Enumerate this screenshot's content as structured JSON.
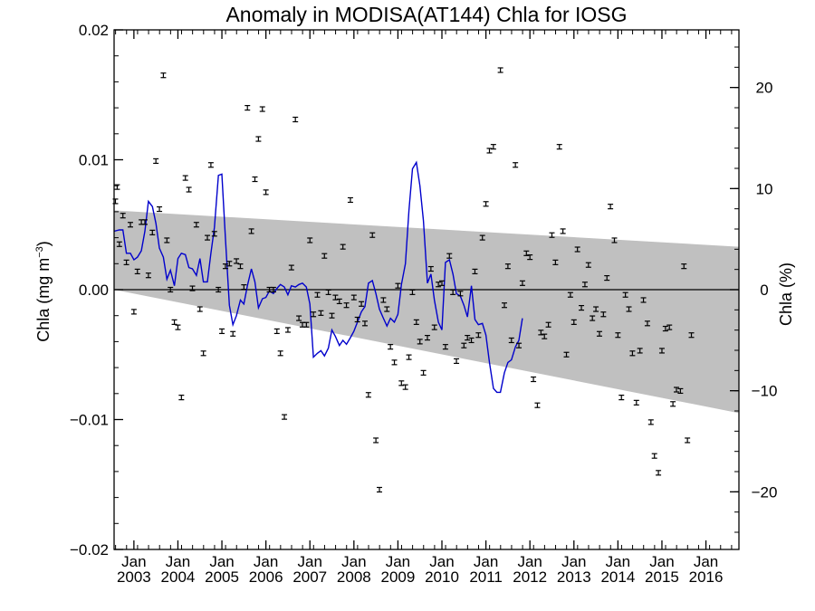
{
  "chart_data": {
    "type": "scatter",
    "title": "Anomaly in MODISA(AT144) Chla for IOSG",
    "ylabel": "Chla (mg m",
    "ylabel_sup": "−3",
    "ylabel_close": ")",
    "ylabel_right": "Chla (%)",
    "ylim": [
      -0.02,
      0.02
    ],
    "y2lim": [
      -25.7,
      25.7
    ],
    "xlim": [
      2002.55,
      2016.75
    ],
    "yticks": [
      "0.02",
      "0.01",
      "0.00",
      "−0.01",
      "−0.02"
    ],
    "yticks_vals": [
      0.02,
      0.01,
      0.0,
      -0.01,
      -0.02
    ],
    "y2ticks": [
      "20",
      "10",
      "0",
      "−10",
      "−20"
    ],
    "y2ticks_vals": [
      20,
      10,
      0,
      -10,
      -20
    ],
    "xticks_month": [
      "Jan",
      "Jan",
      "Jan",
      "Jan",
      "Jan",
      "Jan",
      "Jan",
      "Jan",
      "Jan",
      "Jan",
      "Jan",
      "Jan",
      "Jan",
      "Jan"
    ],
    "xticks_year": [
      "2003",
      "2004",
      "2005",
      "2006",
      "2007",
      "2008",
      "2009",
      "2010",
      "2011",
      "2012",
      "2013",
      "2014",
      "2015",
      "2016"
    ],
    "xticks_vals": [
      2003,
      2004,
      2005,
      2006,
      2007,
      2008,
      2009,
      2010,
      2011,
      2012,
      2013,
      2014,
      2015,
      2016
    ],
    "grid": false,
    "colors": {
      "line": "#0000cc",
      "band": "#c0c0c0",
      "points": "#000000"
    },
    "band": {
      "x": [
        2002.55,
        2016.75
      ],
      "upper": [
        0.0061,
        0.0033
      ],
      "lower": [
        0.0,
        -0.0095
      ]
    },
    "points": [
      [
        2002.58,
        0.0068
      ],
      [
        2002.62,
        0.0079
      ],
      [
        2002.67,
        0.0035
      ],
      [
        2002.75,
        0.0057
      ],
      [
        2002.83,
        0.0021
      ],
      [
        2002.92,
        0.005
      ],
      [
        2003.0,
        -0.0017
      ],
      [
        2003.08,
        0.0014
      ],
      [
        2003.17,
        0.0052
      ],
      [
        2003.25,
        0.0052
      ],
      [
        2003.33,
        0.0011
      ],
      [
        2003.42,
        0.0044
      ],
      [
        2003.5,
        0.0099
      ],
      [
        2003.58,
        0.0062
      ],
      [
        2003.67,
        0.0165
      ],
      [
        2003.75,
        0.0038
      ],
      [
        2003.83,
        0.0
      ],
      [
        2003.92,
        -0.0025
      ],
      [
        2004.0,
        -0.0029
      ],
      [
        2004.08,
        -0.0083
      ],
      [
        2004.17,
        0.0086
      ],
      [
        2004.25,
        0.0077
      ],
      [
        2004.33,
        0.0001
      ],
      [
        2004.42,
        0.005
      ],
      [
        2004.5,
        -0.0015
      ],
      [
        2004.58,
        -0.0049
      ],
      [
        2004.67,
        0.004
      ],
      [
        2004.75,
        0.0096
      ],
      [
        2004.83,
        0.0043
      ],
      [
        2004.92,
        0.0
      ],
      [
        2005.0,
        -0.0032
      ],
      [
        2005.08,
        0.0018
      ],
      [
        2005.17,
        0.002
      ],
      [
        2005.25,
        -0.0034
      ],
      [
        2005.33,
        0.0022
      ],
      [
        2005.42,
        0.0018
      ],
      [
        2005.5,
        0.0002
      ],
      [
        2005.58,
        0.014
      ],
      [
        2005.67,
        0.0045
      ],
      [
        2005.75,
        0.0085
      ],
      [
        2005.83,
        0.0116
      ],
      [
        2005.92,
        0.0139
      ],
      [
        2006.0,
        0.0075
      ],
      [
        2006.08,
        0.0
      ],
      [
        2006.17,
        0.0
      ],
      [
        2006.25,
        -0.0032
      ],
      [
        2006.33,
        -0.0049
      ],
      [
        2006.42,
        -0.0098
      ],
      [
        2006.5,
        -0.0031
      ],
      [
        2006.58,
        0.0017
      ],
      [
        2006.67,
        0.0131
      ],
      [
        2006.75,
        -0.0022
      ],
      [
        2006.83,
        -0.0027
      ],
      [
        2006.92,
        -0.0027
      ],
      [
        2007.0,
        0.0038
      ],
      [
        2007.08,
        -0.0019
      ],
      [
        2007.17,
        -0.0004
      ],
      [
        2007.25,
        -0.0018
      ],
      [
        2007.33,
        0.0026
      ],
      [
        2007.42,
        -0.0002
      ],
      [
        2007.5,
        -0.002
      ],
      [
        2007.58,
        -0.0006
      ],
      [
        2007.67,
        -0.0009
      ],
      [
        2007.75,
        0.0033
      ],
      [
        2007.83,
        -0.0012
      ],
      [
        2007.92,
        0.0069
      ],
      [
        2008.0,
        -0.0006
      ],
      [
        2008.08,
        -0.0023
      ],
      [
        2008.17,
        -0.0011
      ],
      [
        2008.25,
        -0.0026
      ],
      [
        2008.33,
        -0.0081
      ],
      [
        2008.42,
        0.0042
      ],
      [
        2008.5,
        -0.0116
      ],
      [
        2008.58,
        -0.0154
      ],
      [
        2008.67,
        -0.0008
      ],
      [
        2008.75,
        -0.0015
      ],
      [
        2008.83,
        -0.0044
      ],
      [
        2008.92,
        -0.0056
      ],
      [
        2009.0,
        0.0003
      ],
      [
        2009.08,
        -0.0072
      ],
      [
        2009.17,
        -0.0075
      ],
      [
        2009.25,
        -0.0052
      ],
      [
        2009.33,
        -0.0002
      ],
      [
        2009.42,
        -0.0025
      ],
      [
        2009.5,
        -0.004
      ],
      [
        2009.58,
        -0.0064
      ],
      [
        2009.67,
        -0.0037
      ],
      [
        2009.75,
        0.0016
      ],
      [
        2009.83,
        -0.0029
      ],
      [
        2009.92,
        0.0004
      ],
      [
        2010.0,
        0.0005
      ],
      [
        2010.08,
        -0.0044
      ],
      [
        2010.17,
        0.0026
      ],
      [
        2010.25,
        -0.0002
      ],
      [
        2010.33,
        -0.0055
      ],
      [
        2010.42,
        -0.0003
      ],
      [
        2010.5,
        -0.0043
      ],
      [
        2010.58,
        -0.0037
      ],
      [
        2010.67,
        -0.0039
      ],
      [
        2010.75,
        0.0014
      ],
      [
        2010.83,
        -0.0035
      ],
      [
        2010.92,
        0.004
      ],
      [
        2011.0,
        0.0066
      ],
      [
        2011.08,
        0.0107
      ],
      [
        2011.17,
        0.011
      ],
      [
        2011.33,
        0.0169
      ],
      [
        2011.42,
        -0.0012
      ],
      [
        2011.5,
        0.0018
      ],
      [
        2011.58,
        -0.0039
      ],
      [
        2011.67,
        0.0096
      ],
      [
        2011.75,
        -0.0043
      ],
      [
        2011.83,
        0.0005
      ],
      [
        2011.92,
        0.0028
      ],
      [
        2012.0,
        0.0025
      ],
      [
        2012.08,
        -0.0069
      ],
      [
        2012.17,
        -0.0089
      ],
      [
        2012.25,
        -0.0033
      ],
      [
        2012.33,
        -0.0036
      ],
      [
        2012.42,
        -0.0027
      ],
      [
        2012.5,
        0.0042
      ],
      [
        2012.58,
        0.0021
      ],
      [
        2012.67,
        0.011
      ],
      [
        2012.75,
        0.0045
      ],
      [
        2012.83,
        -0.005
      ],
      [
        2012.92,
        -0.0004
      ],
      [
        2013.0,
        -0.0025
      ],
      [
        2013.08,
        0.0031
      ],
      [
        2013.17,
        -0.0014
      ],
      [
        2013.25,
        0.0004
      ],
      [
        2013.33,
        0.0019
      ],
      [
        2013.42,
        -0.0022
      ],
      [
        2013.5,
        -0.0015
      ],
      [
        2013.58,
        -0.0034
      ],
      [
        2013.67,
        -0.0019
      ],
      [
        2013.75,
        0.0009
      ],
      [
        2013.83,
        0.0064
      ],
      [
        2013.92,
        0.0038
      ],
      [
        2014.0,
        -0.0035
      ],
      [
        2014.08,
        -0.0083
      ],
      [
        2014.17,
        -0.0004
      ],
      [
        2014.25,
        -0.0015
      ],
      [
        2014.33,
        -0.0049
      ],
      [
        2014.42,
        -0.0087
      ],
      [
        2014.5,
        -0.0047
      ],
      [
        2014.58,
        -0.0008
      ],
      [
        2014.67,
        -0.0026
      ],
      [
        2014.75,
        -0.0102
      ],
      [
        2014.83,
        -0.0128
      ],
      [
        2014.92,
        -0.0141
      ],
      [
        2015.0,
        -0.0047
      ],
      [
        2015.08,
        -0.003
      ],
      [
        2015.17,
        -0.0029
      ],
      [
        2015.25,
        -0.0088
      ],
      [
        2015.33,
        -0.0077
      ],
      [
        2015.42,
        -0.0078
      ],
      [
        2015.5,
        0.0018
      ],
      [
        2015.58,
        -0.0116
      ],
      [
        2015.67,
        -0.0035
      ]
    ],
    "line": [
      [
        2002.55,
        0.0045
      ],
      [
        2002.67,
        0.0046
      ],
      [
        2002.75,
        0.0046
      ],
      [
        2002.83,
        0.0028
      ],
      [
        2002.92,
        0.0028
      ],
      [
        2003.0,
        0.0023
      ],
      [
        2003.08,
        0.0025
      ],
      [
        2003.17,
        0.003
      ],
      [
        2003.25,
        0.0045
      ],
      [
        2003.33,
        0.0068
      ],
      [
        2003.42,
        0.0064
      ],
      [
        2003.5,
        0.0051
      ],
      [
        2003.58,
        0.0032
      ],
      [
        2003.67,
        0.0025
      ],
      [
        2003.75,
        0.0008
      ],
      [
        2003.83,
        0.0015
      ],
      [
        2003.92,
        0.0003
      ],
      [
        2004.0,
        0.0024
      ],
      [
        2004.08,
        0.0028
      ],
      [
        2004.17,
        0.0027
      ],
      [
        2004.25,
        0.0017
      ],
      [
        2004.33,
        0.0016
      ],
      [
        2004.42,
        0.0011
      ],
      [
        2004.5,
        0.0024
      ],
      [
        2004.58,
        0.0006
      ],
      [
        2004.67,
        0.0006
      ],
      [
        2004.75,
        0.0028
      ],
      [
        2004.83,
        0.0048
      ],
      [
        2004.92,
        0.0088
      ],
      [
        2005.0,
        0.0089
      ],
      [
        2005.08,
        0.004
      ],
      [
        2005.17,
        -0.0012
      ],
      [
        2005.25,
        -0.0027
      ],
      [
        2005.33,
        -0.002
      ],
      [
        2005.42,
        -0.0008
      ],
      [
        2005.5,
        -0.0011
      ],
      [
        2005.58,
        0.0003
      ],
      [
        2005.67,
        0.0016
      ],
      [
        2005.75,
        0.0006
      ],
      [
        2005.83,
        -0.0014
      ],
      [
        2005.92,
        -0.0007
      ],
      [
        2006.0,
        -0.0006
      ],
      [
        2006.08,
        -0.0001
      ],
      [
        2006.17,
        -0.0003
      ],
      [
        2006.25,
        0.0001
      ],
      [
        2006.33,
        0.0004
      ],
      [
        2006.42,
        0.0002
      ],
      [
        2006.5,
        -0.0004
      ],
      [
        2006.58,
        0.0003
      ],
      [
        2006.67,
        0.0002
      ],
      [
        2006.75,
        0.0004
      ],
      [
        2006.83,
        0.0005
      ],
      [
        2006.92,
        0.0002
      ],
      [
        2007.0,
        -0.0011
      ],
      [
        2007.08,
        -0.0052
      ],
      [
        2007.17,
        -0.0049
      ],
      [
        2007.25,
        -0.0047
      ],
      [
        2007.33,
        -0.0051
      ],
      [
        2007.42,
        -0.0045
      ],
      [
        2007.5,
        -0.0031
      ],
      [
        2007.58,
        -0.0036
      ],
      [
        2007.67,
        -0.0043
      ],
      [
        2007.75,
        -0.0039
      ],
      [
        2007.83,
        -0.0042
      ],
      [
        2007.92,
        -0.0037
      ],
      [
        2008.0,
        -0.0032
      ],
      [
        2008.08,
        -0.0025
      ],
      [
        2008.17,
        -0.0017
      ],
      [
        2008.25,
        -0.0013
      ],
      [
        2008.33,
        0.0005
      ],
      [
        2008.42,
        0.0007
      ],
      [
        2008.5,
        -0.0003
      ],
      [
        2008.58,
        -0.0015
      ],
      [
        2008.67,
        -0.0022
      ],
      [
        2008.75,
        -0.0028
      ],
      [
        2008.83,
        -0.0022
      ],
      [
        2008.92,
        -0.0025
      ],
      [
        2009.0,
        -0.0019
      ],
      [
        2009.08,
        0.0004
      ],
      [
        2009.17,
        0.002
      ],
      [
        2009.25,
        0.0061
      ],
      [
        2009.33,
        0.0093
      ],
      [
        2009.42,
        0.0098
      ],
      [
        2009.5,
        0.008
      ],
      [
        2009.58,
        0.0053
      ],
      [
        2009.67,
        0.0005
      ],
      [
        2009.75,
        0.0012
      ],
      [
        2009.83,
        -0.0008
      ],
      [
        2009.92,
        -0.0025
      ],
      [
        2010.0,
        -0.0031
      ],
      [
        2010.08,
        0.0021
      ],
      [
        2010.17,
        0.0023
      ],
      [
        2010.25,
        0.0012
      ],
      [
        2010.33,
        -0.0003
      ],
      [
        2010.42,
        -0.0005
      ],
      [
        2010.5,
        -0.0012
      ],
      [
        2010.58,
        -0.0021
      ],
      [
        2010.67,
        0.0003
      ],
      [
        2010.75,
        -0.0023
      ],
      [
        2010.83,
        -0.0027
      ],
      [
        2010.92,
        -0.0026
      ],
      [
        2011.0,
        -0.0035
      ],
      [
        2011.08,
        -0.0056
      ],
      [
        2011.17,
        -0.0076
      ],
      [
        2011.25,
        -0.0079
      ],
      [
        2011.33,
        -0.0079
      ],
      [
        2011.42,
        -0.0064
      ],
      [
        2011.5,
        -0.0056
      ],
      [
        2011.58,
        -0.0054
      ],
      [
        2011.67,
        -0.0044
      ],
      [
        2011.75,
        -0.0039
      ],
      [
        2011.83,
        -0.0022
      ]
    ]
  }
}
